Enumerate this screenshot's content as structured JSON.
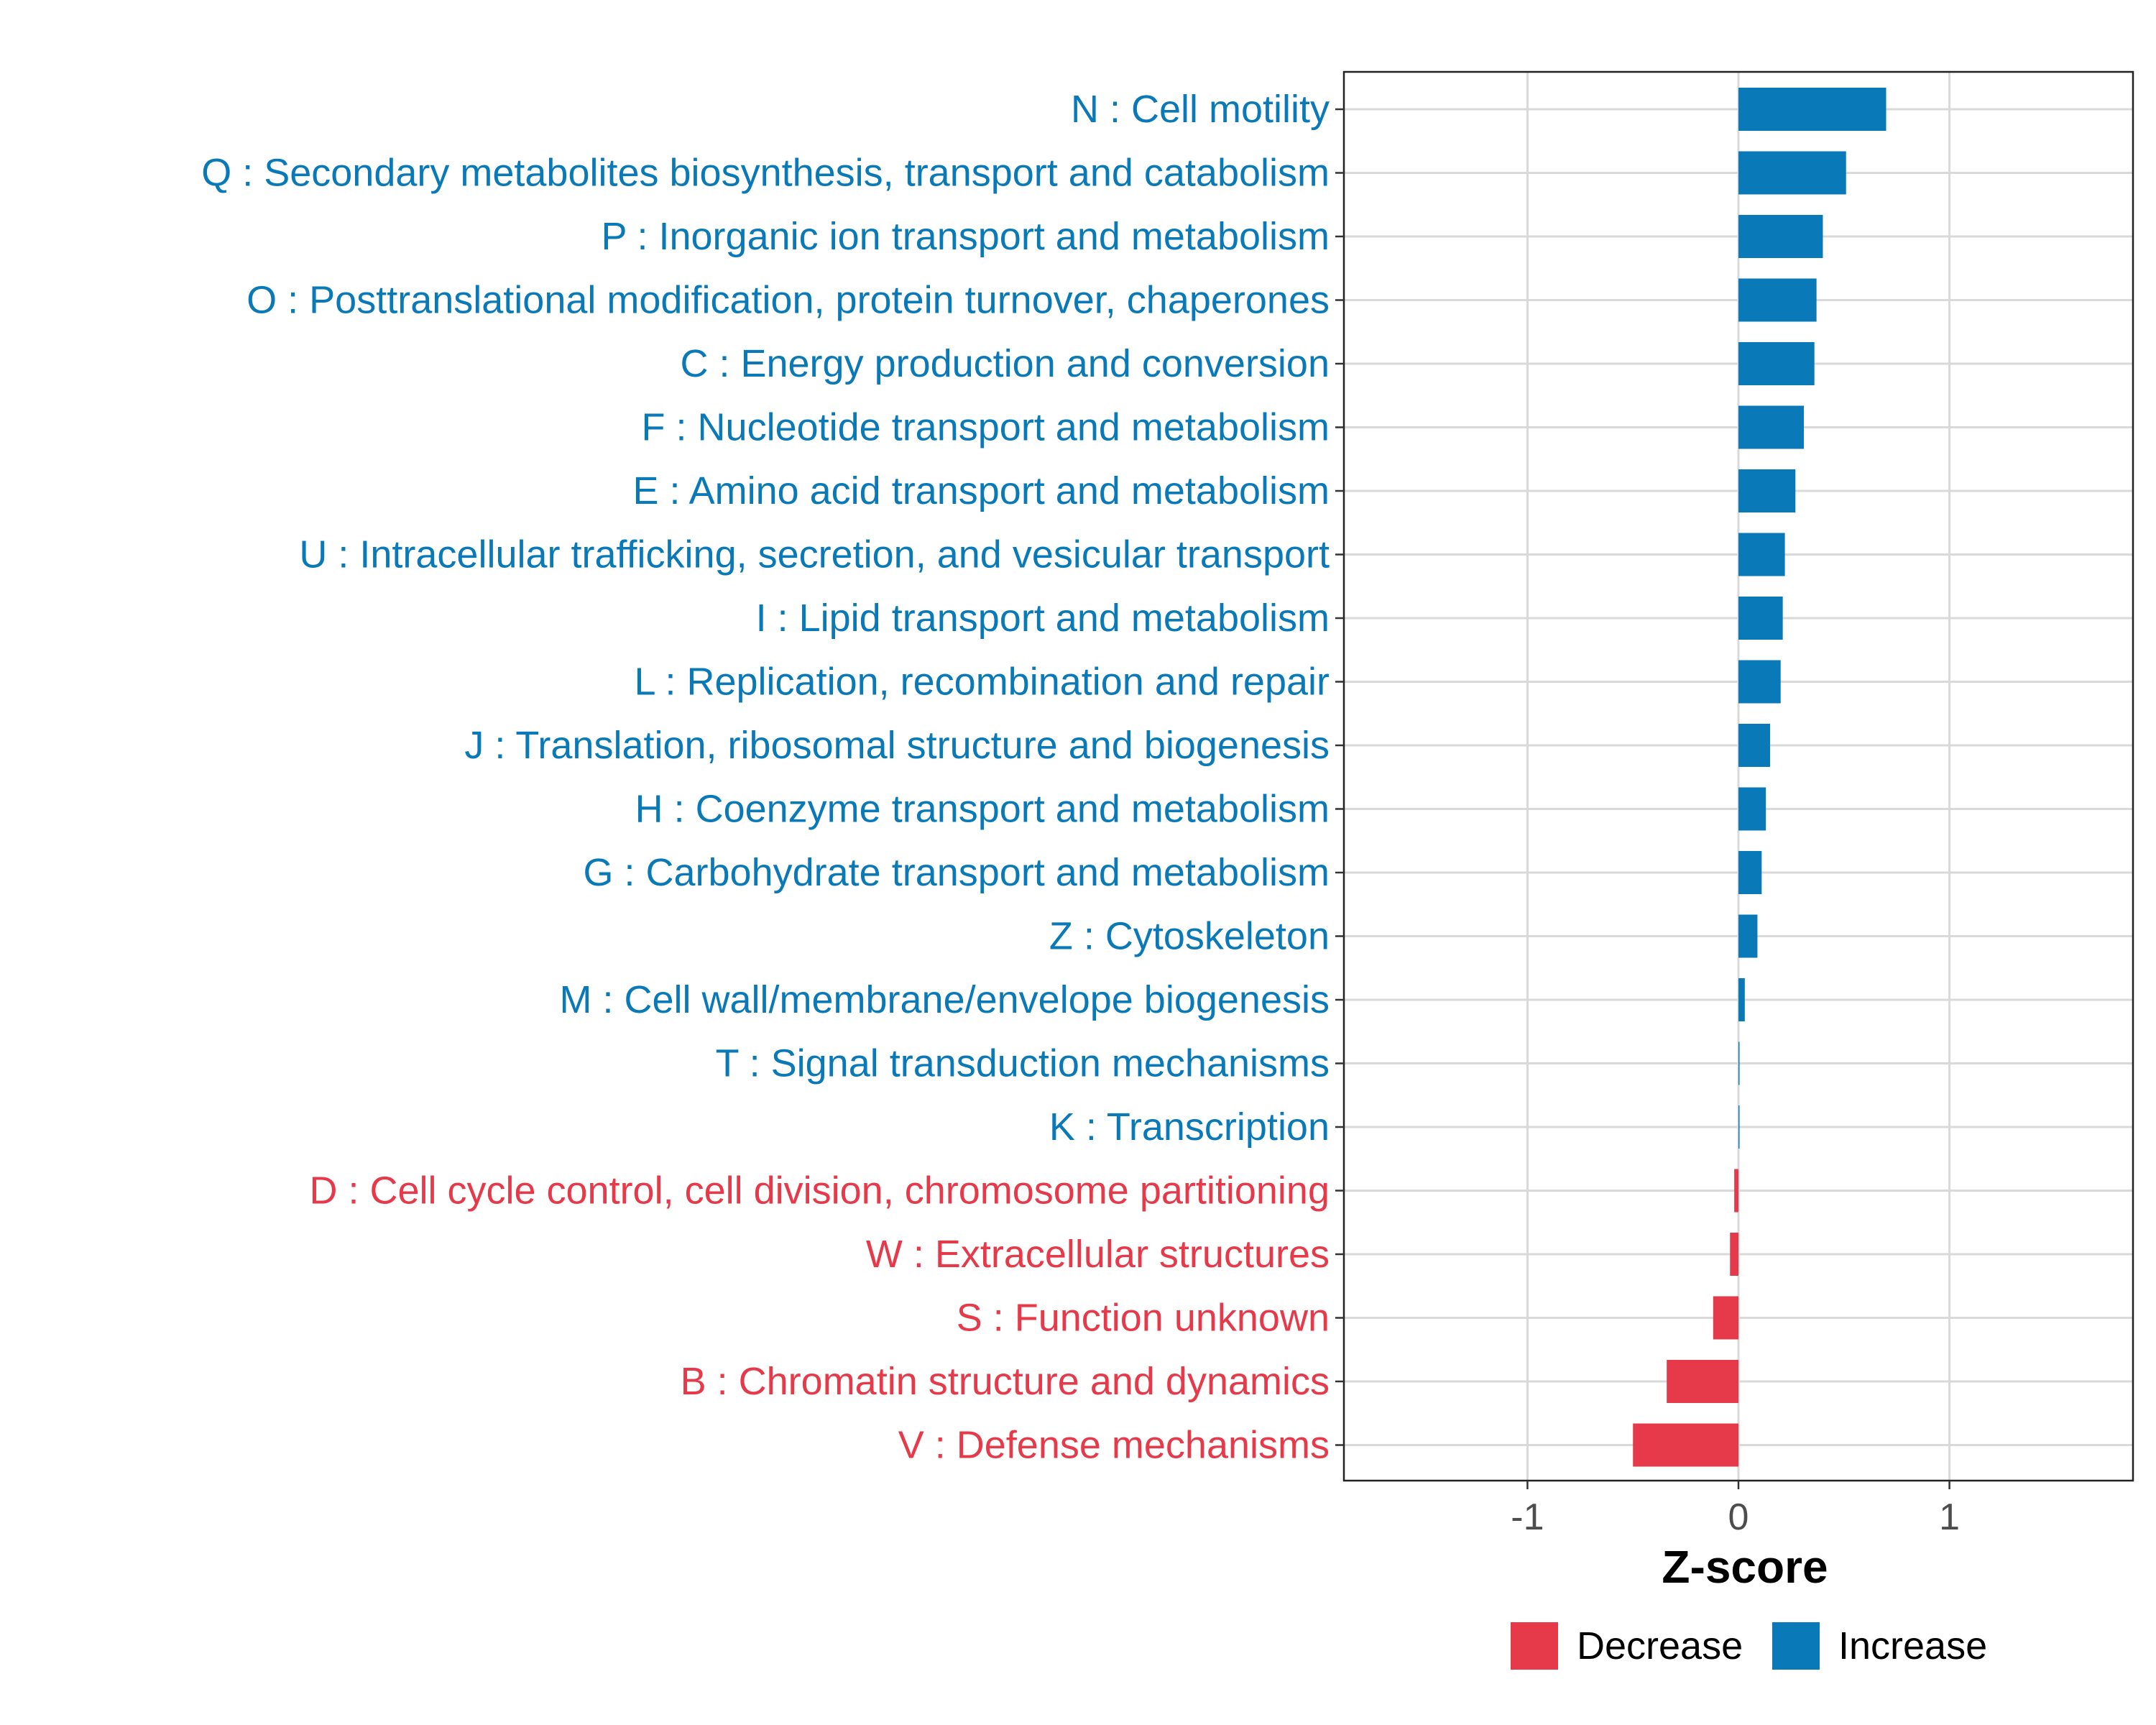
{
  "chart_data": {
    "type": "bar",
    "orientation": "horizontal",
    "xlabel": "Z-score",
    "ylabel": "",
    "xlim": [
      -1.87,
      1.87
    ],
    "x_ticks": [
      -1,
      0,
      1
    ],
    "x_tick_labels": [
      "-1",
      "0",
      "1"
    ],
    "grid": true,
    "legend_position": "bottom",
    "colors": {
      "Increase": "#0a79b8",
      "Decrease": "#e63a4a"
    },
    "legend": [
      {
        "key": "Decrease",
        "label": "Decrease"
      },
      {
        "key": "Increase",
        "label": "Increase"
      }
    ],
    "categories": [
      "N : Cell motility",
      "Q : Secondary metabolites biosynthesis, transport and catabolism",
      "P : Inorganic ion transport and metabolism",
      "O : Posttranslational modification, protein turnover, chaperones",
      "C : Energy production and conversion",
      "F : Nucleotide transport and metabolism",
      "E : Amino acid transport and metabolism",
      "U : Intracellular trafficking, secretion, and vesicular transport",
      "I : Lipid transport and metabolism",
      "L : Replication, recombination and repair",
      "J : Translation, ribosomal structure and biogenesis",
      "H : Coenzyme transport and metabolism",
      "G : Carbohydrate transport and metabolism",
      "Z : Cytoskeleton",
      "M : Cell wall/membrane/envelope biogenesis",
      "T : Signal transduction mechanisms",
      "K : Transcription",
      "D : Cell cycle control, cell division, chromosome partitioning",
      "W : Extracellular structures",
      "S : Function unknown",
      "B : Chromatin structure and dynamics",
      "V : Defense mechanisms"
    ],
    "values": [
      0.7,
      0.51,
      0.4,
      0.37,
      0.36,
      0.31,
      0.27,
      0.22,
      0.21,
      0.2,
      0.15,
      0.13,
      0.11,
      0.09,
      0.03,
      0.005,
      0.005,
      -0.02,
      -0.04,
      -0.12,
      -0.34,
      -0.5
    ],
    "direction": [
      "Increase",
      "Increase",
      "Increase",
      "Increase",
      "Increase",
      "Increase",
      "Increase",
      "Increase",
      "Increase",
      "Increase",
      "Increase",
      "Increase",
      "Increase",
      "Increase",
      "Increase",
      "Increase",
      "Increase",
      "Decrease",
      "Decrease",
      "Decrease",
      "Decrease",
      "Decrease"
    ]
  }
}
